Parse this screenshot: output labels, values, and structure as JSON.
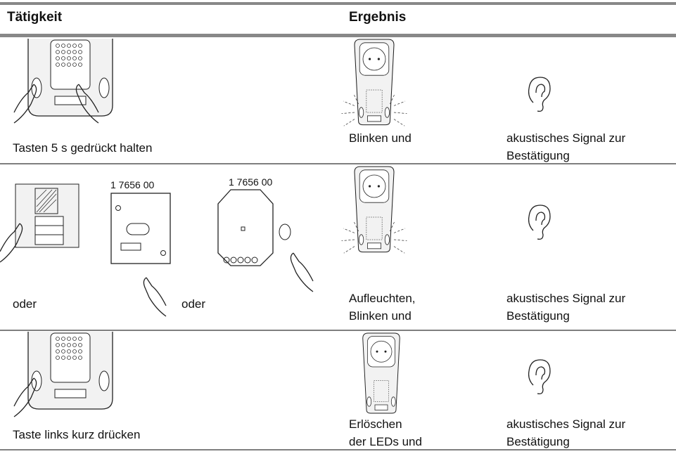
{
  "header": {
    "columns": [
      "Tätigkeit",
      "Ergebnis"
    ]
  },
  "rows": [
    {
      "activity": [
        "Tasten 5 s gedrückt halten"
      ],
      "result": [
        "Blinken und"
      ],
      "signal": [
        "akustisches Signal zur",
        "Bestätigung"
      ]
    },
    {
      "activity": [
        "oder",
        "oder"
      ],
      "device_labels": [
        "1 7656 00",
        "1 7656 00"
      ],
      "result": [
        "Aufleuchten,",
        "Blinken und"
      ],
      "signal": [
        "akustisches Signal zur",
        "Bestätigung"
      ]
    },
    {
      "activity": [
        "Taste links kurz drücken"
      ],
      "result": [
        "Erlöschen",
        "der LEDs und"
      ],
      "signal": [
        "akustisches Signal zur",
        "Bestätigung"
      ]
    }
  ]
}
